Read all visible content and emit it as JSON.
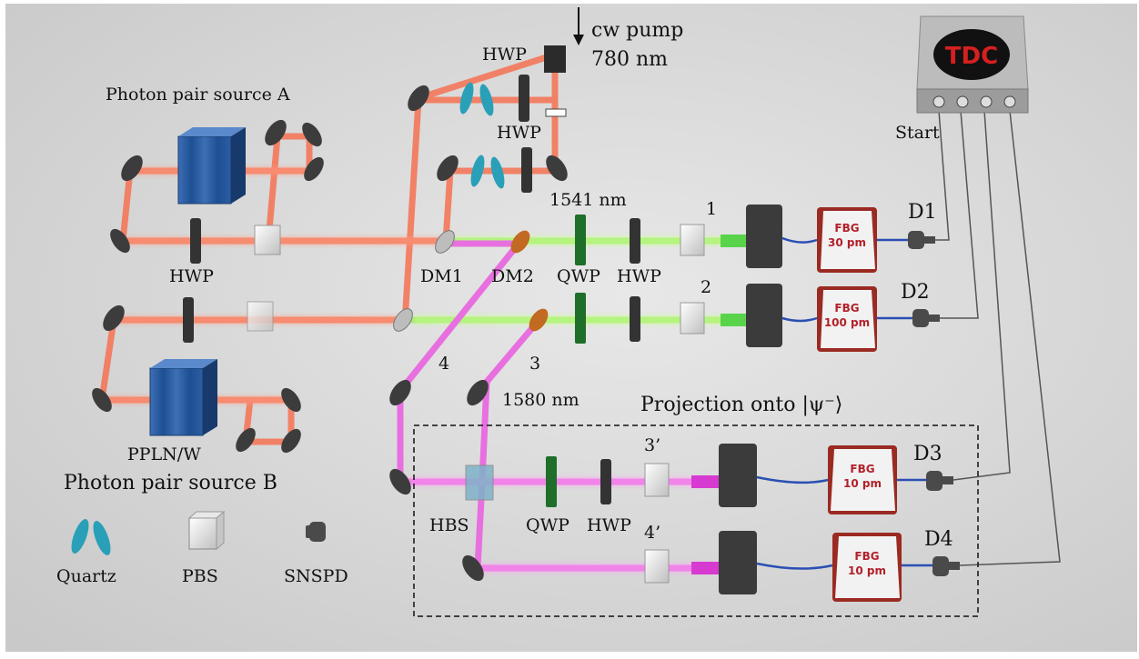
{
  "labels": {
    "cw_pump": "cw pump",
    "pump_wavelength": "780 nm",
    "hwp_top": "HWP",
    "hwp_mid": "HWP",
    "source_a": "Photon pair source A",
    "source_b": "Photon pair source B",
    "hwp_a": "HWP",
    "ppln": "PPLN/W",
    "dm1": "DM1",
    "dm2": "DM2",
    "qwp1": "QWP",
    "hwp1": "HWP",
    "wl_1541": "1541 nm",
    "wl_1580": "1580 nm",
    "path1": "1",
    "path2": "2",
    "path3": "3",
    "path4": "4",
    "path3p": "3’",
    "path4p": "4’",
    "hbs": "HBS",
    "qwp2": "QWP",
    "hwp2": "HWP",
    "projection": "Projection onto |ψ⁻⟩",
    "tdc": "TDC",
    "start": "Start",
    "d1": "D1",
    "d2": "D2",
    "d3": "D3",
    "d4": "D4"
  },
  "fbg": [
    {
      "name": "FBG",
      "value": "30 pm"
    },
    {
      "name": "FBG",
      "value": "100 pm"
    },
    {
      "name": "FBG",
      "value": "10 pm"
    },
    {
      "name": "FBG",
      "value": "10 pm"
    }
  ],
  "legend": [
    {
      "label": "Quartz",
      "icon": "quartz-icon"
    },
    {
      "label": "PBS",
      "icon": "pbs-icon"
    },
    {
      "label": "SNSPD",
      "icon": "snspd-icon"
    }
  ],
  "colors": {
    "pump_beam": "#f4785a",
    "telecom_beam": "#a7e86f",
    "idler_beam": "#e86fe0",
    "fiber": "#2b4fb3",
    "background": "#dcdcdc"
  }
}
